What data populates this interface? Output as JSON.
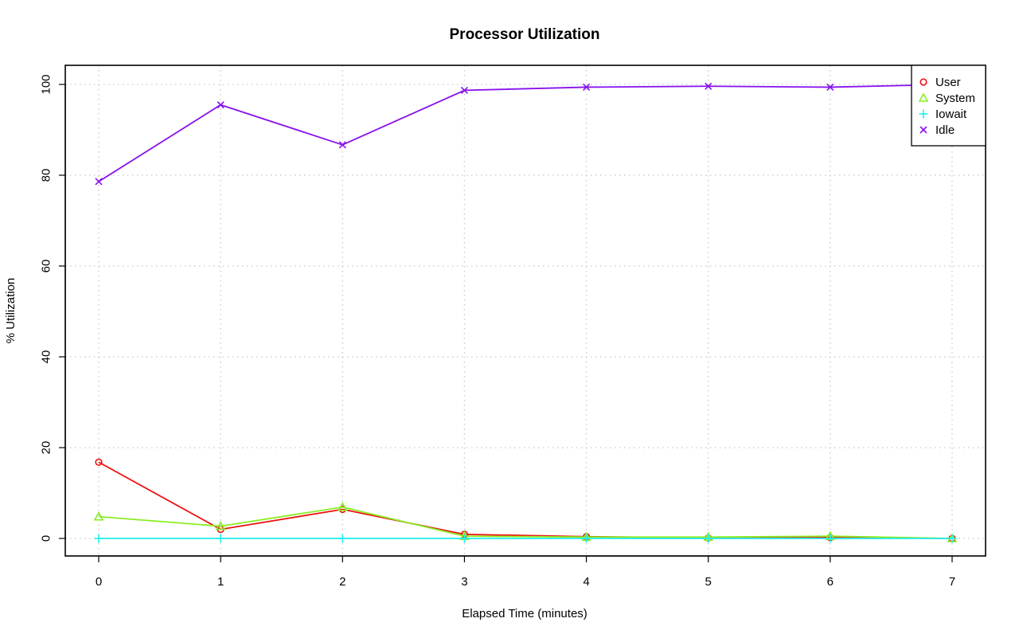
{
  "chart_data": {
    "type": "line",
    "title": "Processor Utilization",
    "xlabel": "Elapsed Time (minutes)",
    "ylabel": "% Utilization",
    "xlim": [
      0,
      7
    ],
    "ylim": [
      0,
      100
    ],
    "x": [
      0,
      1,
      2,
      3,
      4,
      5,
      6,
      7
    ],
    "xticks": [
      "0",
      "1",
      "2",
      "3",
      "4",
      "5",
      "6",
      "7"
    ],
    "yticks": [
      "0",
      "20",
      "40",
      "60",
      "80",
      "100"
    ],
    "grid": true,
    "legend": "top-right",
    "series": [
      {
        "name": "User",
        "color": "#ee1111",
        "marker": "circle",
        "values": [
          16.8,
          2.0,
          6.4,
          0.9,
          0.4,
          0.1,
          0.2,
          0.0
        ]
      },
      {
        "name": "System",
        "color": "#88ee22",
        "marker": "triangle",
        "values": [
          4.8,
          2.7,
          6.9,
          0.5,
          0.3,
          0.3,
          0.5,
          0.0
        ]
      },
      {
        "name": "Iowait",
        "color": "#22eeee",
        "marker": "plus",
        "values": [
          0.0,
          0.0,
          0.0,
          0.0,
          0.0,
          0.0,
          0.0,
          0.0
        ]
      },
      {
        "name": "Idle",
        "color": "#8811ee",
        "marker": "cross",
        "values": [
          78.6,
          95.5,
          86.7,
          98.7,
          99.4,
          99.6,
          99.4,
          100.0
        ]
      }
    ]
  }
}
